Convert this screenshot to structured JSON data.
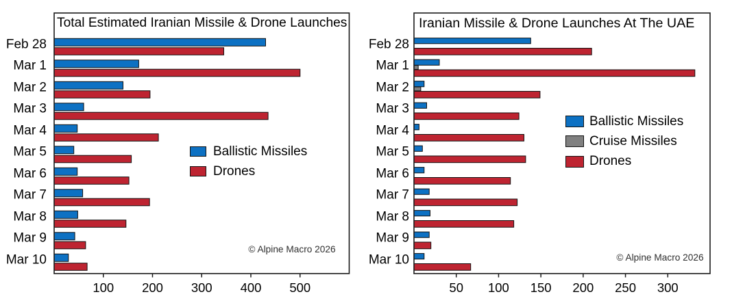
{
  "chart_data": [
    {
      "type": "bar",
      "orientation": "horizontal",
      "title": "Total Estimated Iranian Missile & Drone Launches",
      "copyright": "© Alpine Macro 2026",
      "categories": [
        "Feb 28",
        "Mar 1",
        "Mar 2",
        "Mar 3",
        "Mar 4",
        "Mar 5",
        "Mar 6",
        "Mar 7",
        "Mar 8",
        "Mar 9",
        "Mar 10"
      ],
      "series": [
        {
          "name": "Ballistic Missiles",
          "color": "#0d71c3",
          "values": [
            430,
            172,
            140,
            60,
            47,
            40,
            47,
            58,
            48,
            42,
            29
          ]
        },
        {
          "name": "Drones",
          "color": "#be2431",
          "values": [
            345,
            500,
            195,
            435,
            212,
            157,
            152,
            194,
            146,
            64,
            67
          ]
        }
      ],
      "xticks": [
        100,
        200,
        300,
        400,
        500
      ],
      "xlim": [
        0,
        600
      ],
      "grid": false,
      "legend_position": "center-right-inside"
    },
    {
      "type": "bar",
      "orientation": "horizontal",
      "title": "Iranian Missile & Drone Launches At The UAE",
      "copyright": "© Alpine Macro 2026",
      "categories": [
        "Feb 28",
        "Mar 1",
        "Mar 2",
        "Mar 3",
        "Mar 4",
        "Mar 5",
        "Mar 6",
        "Mar 7",
        "Mar 8",
        "Mar 9",
        "Mar 10"
      ],
      "series": [
        {
          "name": "Ballistic Missiles",
          "color": "#0d71c3",
          "values": [
            138,
            30,
            12,
            15,
            6,
            10,
            12,
            18,
            19,
            18,
            12
          ]
        },
        {
          "name": "Cruise Missiles",
          "color": "#808080",
          "values": [
            0,
            5,
            8,
            0,
            0,
            0,
            0,
            0,
            0,
            0,
            0
          ]
        },
        {
          "name": "Drones",
          "color": "#be2431",
          "values": [
            210,
            332,
            149,
            124,
            130,
            132,
            114,
            122,
            118,
            20,
            67
          ]
        }
      ],
      "xticks": [
        50,
        100,
        150,
        200,
        250,
        300
      ],
      "xlim": [
        0,
        350
      ],
      "grid": false,
      "legend_position": "center-right-inside"
    }
  ],
  "colors": {
    "ballistic_missiles": "#0d71c3",
    "cruise_missiles": "#808080",
    "drones": "#be2431",
    "bar_outline": "#111111",
    "axis": "#1a1a1a",
    "background": "#ffffff"
  }
}
